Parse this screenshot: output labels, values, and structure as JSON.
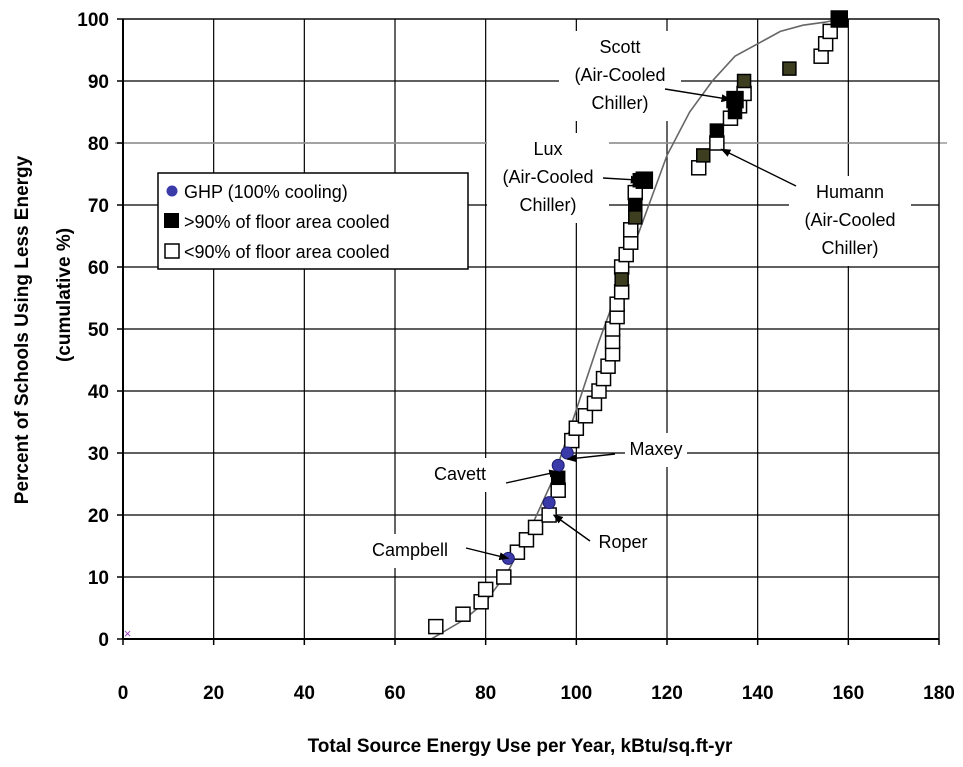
{
  "chart_data": {
    "type": "scatter",
    "xlabel": "Total Source Energy Use per Year, kBtu/sq.ft-yr",
    "ylabel": "Percent of Schools Using Less Energy",
    "ylabel_sub": "(cumulative %)",
    "xlim": [
      0,
      180
    ],
    "ylim": [
      0,
      100
    ],
    "x_ticks": [
      0,
      20,
      40,
      60,
      80,
      100,
      120,
      140,
      160,
      180
    ],
    "y_ticks": [
      0,
      10,
      20,
      30,
      40,
      50,
      60,
      70,
      80,
      90,
      100
    ],
    "grid": true,
    "legend_position": "upper-left",
    "series": [
      {
        "name": "GHP (100% cooling)",
        "marker": "circle",
        "color": "#3a3aa8",
        "points": [
          [
            85,
            13
          ],
          [
            94,
            22
          ],
          [
            96,
            28
          ],
          [
            98,
            30
          ]
        ]
      },
      {
        "name": ">90% of floor area cooled",
        "marker": "filled-square",
        "color": "#000000",
        "points": [
          [
            96,
            26
          ],
          [
            113,
            70
          ],
          [
            114,
            74
          ],
          [
            115,
            74
          ],
          [
            131,
            82
          ],
          [
            135,
            85
          ],
          [
            135,
            87
          ],
          [
            158,
            100
          ],
          [
            110,
            58
          ],
          [
            113,
            68
          ],
          [
            128,
            78
          ],
          [
            137,
            90
          ],
          [
            147,
            92
          ]
        ]
      },
      {
        "name": "<90% of floor area cooled",
        "marker": "open-square",
        "color": "#000000",
        "points": [
          [
            69,
            2
          ],
          [
            75,
            4
          ],
          [
            79,
            6
          ],
          [
            80,
            8
          ],
          [
            84,
            10
          ],
          [
            87,
            14
          ],
          [
            89,
            16
          ],
          [
            91,
            18
          ],
          [
            94,
            20
          ],
          [
            96,
            24
          ],
          [
            99,
            32
          ],
          [
            100,
            34
          ],
          [
            102,
            36
          ],
          [
            104,
            38
          ],
          [
            105,
            40
          ],
          [
            106,
            42
          ],
          [
            107,
            44
          ],
          [
            108,
            46
          ],
          [
            108,
            48
          ],
          [
            108,
            50
          ],
          [
            109,
            52
          ],
          [
            109,
            54
          ],
          [
            110,
            56
          ],
          [
            110,
            60
          ],
          [
            111,
            62
          ],
          [
            112,
            64
          ],
          [
            112,
            66
          ],
          [
            113,
            72
          ],
          [
            127,
            76
          ],
          [
            131,
            80
          ],
          [
            134,
            84
          ],
          [
            136,
            86
          ],
          [
            137,
            88
          ],
          [
            154,
            94
          ],
          [
            155,
            96
          ],
          [
            156,
            98
          ]
        ]
      }
    ],
    "trendline_points": [
      [
        68,
        0
      ],
      [
        75,
        3
      ],
      [
        80,
        6
      ],
      [
        85,
        11
      ],
      [
        90,
        18
      ],
      [
        95,
        26
      ],
      [
        100,
        37
      ],
      [
        105,
        48
      ],
      [
        110,
        58
      ],
      [
        115,
        68
      ],
      [
        120,
        78
      ],
      [
        125,
        85
      ],
      [
        130,
        90
      ],
      [
        135,
        94
      ],
      [
        140,
        96
      ],
      [
        145,
        98
      ],
      [
        150,
        99
      ],
      [
        155,
        99.5
      ],
      [
        158,
        100
      ]
    ],
    "reference_line_y": 80,
    "origin_marker": [
      1,
      1
    ],
    "annotations": [
      {
        "id": "scott",
        "lines": [
          "Scott",
          "(Air-Cooled",
          "Chiller)"
        ],
        "target": [
          134,
          87
        ]
      },
      {
        "id": "lux",
        "lines": [
          "Lux",
          "(Air-Cooled",
          "Chiller)"
        ],
        "target": [
          114,
          74
        ]
      },
      {
        "id": "humann",
        "lines": [
          "Humann",
          "(Air-Cooled",
          "Chiller)"
        ],
        "target": [
          132,
          79
        ]
      },
      {
        "id": "maxey",
        "lines": [
          "Maxey"
        ],
        "target": [
          98,
          29
        ]
      },
      {
        "id": "cavett",
        "lines": [
          "Cavett"
        ],
        "target": [
          96,
          27
        ]
      },
      {
        "id": "roper",
        "lines": [
          "Roper"
        ],
        "target": [
          95,
          20
        ]
      },
      {
        "id": "campbell",
        "lines": [
          "Campbell"
        ],
        "target": [
          85,
          13
        ]
      }
    ]
  }
}
